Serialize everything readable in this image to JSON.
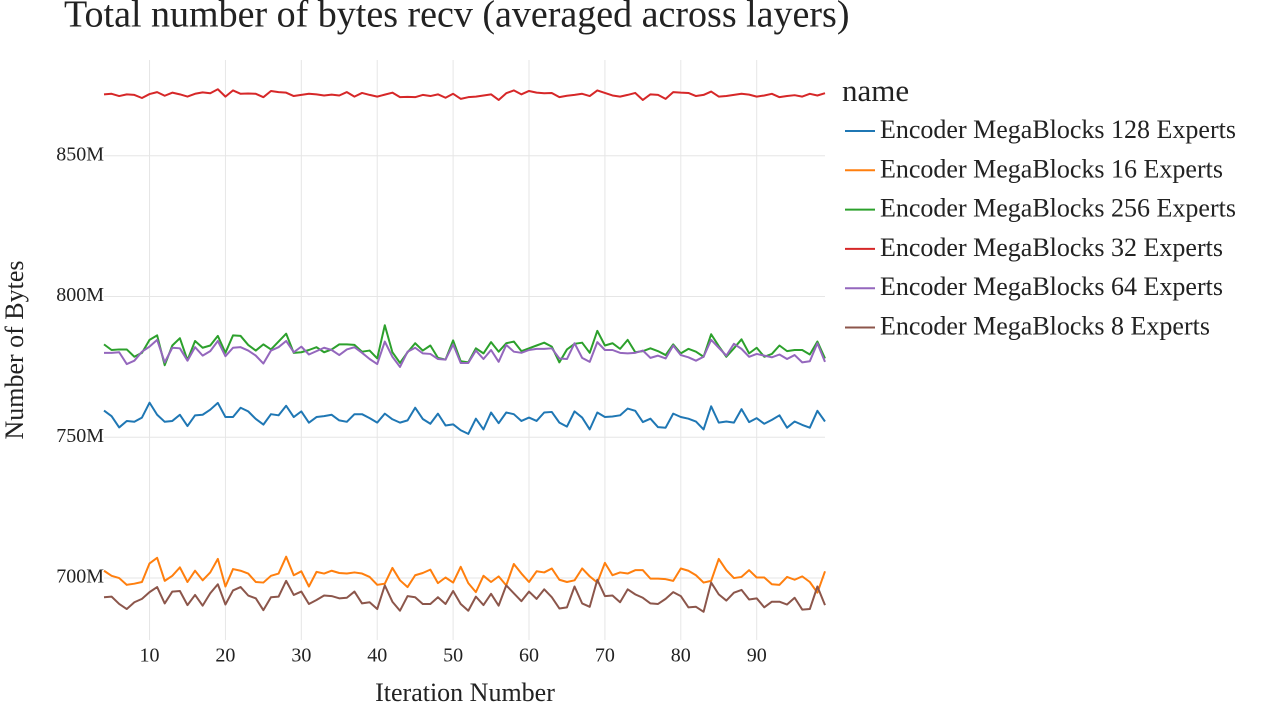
{
  "chart_data": {
    "type": "line",
    "title": "Total number of bytes recv (averaged across layers)",
    "x_label": "Iteration Number",
    "y_label": "Number of Bytes",
    "legend_title": "name",
    "legend_position": "right",
    "grid": true,
    "xlim": [
      4,
      99
    ],
    "ylim": [
      678000000.0,
      884000000.0
    ],
    "xticks": [
      10,
      20,
      30,
      40,
      50,
      60,
      70,
      80,
      90
    ],
    "yticks": [
      {
        "value": 700000000.0,
        "label": "700M"
      },
      {
        "value": 750000000.0,
        "label": "750M"
      },
      {
        "value": 800000000.0,
        "label": "800M"
      },
      {
        "value": 850000000.0,
        "label": "850M"
      }
    ],
    "x": [
      4,
      5,
      6,
      7,
      8,
      9,
      10,
      11,
      12,
      13,
      14,
      15,
      16,
      17,
      18,
      19,
      20,
      21,
      22,
      23,
      24,
      25,
      26,
      27,
      28,
      29,
      30,
      31,
      32,
      33,
      34,
      35,
      36,
      37,
      38,
      39,
      40,
      41,
      42,
      43,
      44,
      45,
      46,
      47,
      48,
      49,
      50,
      51,
      52,
      53,
      54,
      55,
      56,
      57,
      58,
      59,
      60,
      61,
      62,
      63,
      64,
      65,
      66,
      67,
      68,
      69,
      70,
      71,
      72,
      73,
      74,
      75,
      76,
      77,
      78,
      79,
      80,
      81,
      82,
      83,
      84,
      85,
      86,
      87,
      88,
      89,
      90,
      91,
      92,
      93,
      94,
      95,
      96,
      97,
      98,
      99
    ],
    "series": [
      {
        "name": "Encoder MegaBlocks 128 Experts",
        "color": "#1f77b4",
        "values": [
          759500000.0,
          757500000.0,
          753500000.0,
          755800000.0,
          755500000.0,
          757000000.0,
          762300000.0,
          758000000.0,
          755500000.0,
          755800000.0,
          758000000.0,
          754000000.0,
          757800000.0,
          758000000.0,
          759800000.0,
          762200000.0,
          757200000.0,
          757200000.0,
          760500000.0,
          759200000.0,
          756500000.0,
          754500000.0,
          758200000.0,
          757800000.0,
          761200000.0,
          757200000.0,
          759200000.0,
          755200000.0,
          757200000.0,
          757500000.0,
          758000000.0,
          756000000.0,
          755500000.0,
          758200000.0,
          758200000.0,
          756800000.0,
          755200000.0,
          758400000.0,
          756400000.0,
          755200000.0,
          756000000.0,
          760500000.0,
          756500000.0,
          754800000.0,
          758400000.0,
          754200000.0,
          754600000.0,
          752500000.0,
          751200000.0,
          756600000.0,
          752800000.0,
          758800000.0,
          755000000.0,
          758800000.0,
          758200000.0,
          755800000.0,
          757000000.0,
          755800000.0,
          758800000.0,
          759000000.0,
          755200000.0,
          753800000.0,
          759200000.0,
          757000000.0,
          752800000.0,
          758800000.0,
          757200000.0,
          757400000.0,
          757800000.0,
          760200000.0,
          759400000.0,
          755400000.0,
          756600000.0,
          753600000.0,
          753400000.0,
          758400000.0,
          757200000.0,
          756600000.0,
          755600000.0,
          752800000.0,
          761000000.0,
          755200000.0,
          755600000.0,
          755200000.0,
          760000000.0,
          755400000.0,
          756800000.0,
          754800000.0,
          756200000.0,
          757800000.0,
          753400000.0,
          755600000.0,
          754400000.0,
          753400000.0,
          759400000.0,
          755600000.0
        ]
      },
      {
        "name": "Encoder MegaBlocks 16 Experts",
        "color": "#ff7f0e",
        "values": [
          702600000.0,
          700800000.0,
          700000000.0,
          697600000.0,
          698000000.0,
          698600000.0,
          705200000.0,
          707200000.0,
          699000000.0,
          700800000.0,
          703800000.0,
          698600000.0,
          702600000.0,
          699200000.0,
          702000000.0,
          706800000.0,
          697000000.0,
          703200000.0,
          702600000.0,
          701600000.0,
          698600000.0,
          698400000.0,
          700800000.0,
          701600000.0,
          707600000.0,
          701000000.0,
          702400000.0,
          697000000.0,
          702200000.0,
          701600000.0,
          702600000.0,
          701800000.0,
          701600000.0,
          702000000.0,
          701600000.0,
          700400000.0,
          697600000.0,
          698000000.0,
          703600000.0,
          699200000.0,
          696800000.0,
          701000000.0,
          701800000.0,
          703000000.0,
          698200000.0,
          700200000.0,
          698400000.0,
          704000000.0,
          698200000.0,
          695000000.0,
          700800000.0,
          698600000.0,
          700600000.0,
          697400000.0,
          705000000.0,
          701600000.0,
          698600000.0,
          702400000.0,
          702000000.0,
          703400000.0,
          699400000.0,
          698600000.0,
          699200000.0,
          703400000.0,
          700600000.0,
          698400000.0,
          705400000.0,
          701000000.0,
          702000000.0,
          701600000.0,
          702800000.0,
          702800000.0,
          699800000.0,
          699800000.0,
          699600000.0,
          699000000.0,
          703400000.0,
          702600000.0,
          701000000.0,
          698400000.0,
          699000000.0,
          706800000.0,
          702800000.0,
          700000000.0,
          700400000.0,
          702800000.0,
          700200000.0,
          700200000.0,
          697800000.0,
          697600000.0,
          700400000.0,
          699400000.0,
          700600000.0,
          698600000.0,
          694800000.0,
          702400000.0
        ]
      },
      {
        "name": "Encoder MegaBlocks 256 Experts",
        "color": "#2ca02c",
        "values": [
          783000000.0,
          781000000.0,
          781200000.0,
          781200000.0,
          778600000.0,
          780000000.0,
          784600000.0,
          786200000.0,
          775600000.0,
          782600000.0,
          785200000.0,
          777400000.0,
          784200000.0,
          781800000.0,
          782600000.0,
          786000000.0,
          780000000.0,
          786200000.0,
          786000000.0,
          782800000.0,
          780800000.0,
          783000000.0,
          781200000.0,
          784000000.0,
          786800000.0,
          780000000.0,
          780200000.0,
          781000000.0,
          782000000.0,
          780200000.0,
          781200000.0,
          783000000.0,
          783000000.0,
          782800000.0,
          780400000.0,
          780800000.0,
          778000000.0,
          789800000.0,
          780200000.0,
          776400000.0,
          780200000.0,
          783400000.0,
          780800000.0,
          782600000.0,
          778200000.0,
          777600000.0,
          784400000.0,
          777000000.0,
          776600000.0,
          781600000.0,
          779800000.0,
          783800000.0,
          780400000.0,
          783400000.0,
          784000000.0,
          780600000.0,
          781600000.0,
          782600000.0,
          783600000.0,
          782200000.0,
          776600000.0,
          781200000.0,
          783200000.0,
          783600000.0,
          780000000.0,
          787800000.0,
          782600000.0,
          783400000.0,
          781400000.0,
          784600000.0,
          780200000.0,
          780600000.0,
          781600000.0,
          780600000.0,
          779200000.0,
          783000000.0,
          779800000.0,
          781400000.0,
          780400000.0,
          778600000.0,
          786600000.0,
          782400000.0,
          778600000.0,
          781600000.0,
          784800000.0,
          779800000.0,
          781800000.0,
          778600000.0,
          779600000.0,
          782600000.0,
          780600000.0,
          781000000.0,
          781000000.0,
          779400000.0,
          784000000.0,
          778000000.0
        ]
      },
      {
        "name": "Encoder MegaBlocks 32 Experts",
        "color": "#d62728",
        "values": [
          871800000.0,
          872000000.0,
          871200000.0,
          871800000.0,
          871600000.0,
          870500000.0,
          871900000.0,
          872600000.0,
          871300000.0,
          872400000.0,
          871800000.0,
          871000000.0,
          872000000.0,
          872500000.0,
          872200000.0,
          873600000.0,
          871000000.0,
          873200000.0,
          872000000.0,
          872100000.0,
          872000000.0,
          870800000.0,
          873000000.0,
          872600000.0,
          872400000.0,
          871200000.0,
          871600000.0,
          872000000.0,
          871800000.0,
          871400000.0,
          871700000.0,
          871400000.0,
          872600000.0,
          871000000.0,
          872300000.0,
          871600000.0,
          871000000.0,
          871700000.0,
          872400000.0,
          870800000.0,
          870900000.0,
          870800000.0,
          871600000.0,
          871200000.0,
          871800000.0,
          870600000.0,
          872000000.0,
          870200000.0,
          870800000.0,
          871000000.0,
          871400000.0,
          871800000.0,
          869800000.0,
          872200000.0,
          873200000.0,
          871800000.0,
          873000000.0,
          872400000.0,
          872200000.0,
          872300000.0,
          870800000.0,
          871300000.0,
          871600000.0,
          872000000.0,
          871200000.0,
          873200000.0,
          872300000.0,
          871400000.0,
          871000000.0,
          871600000.0,
          872300000.0,
          869800000.0,
          871800000.0,
          871600000.0,
          870200000.0,
          872600000.0,
          872400000.0,
          872300000.0,
          871200000.0,
          871600000.0,
          872800000.0,
          871000000.0,
          871200000.0,
          871600000.0,
          872000000.0,
          871700000.0,
          871000000.0,
          871400000.0,
          872000000.0,
          870800000.0,
          871200000.0,
          871500000.0,
          871000000.0,
          872000000.0,
          871400000.0,
          872200000.0
        ]
      },
      {
        "name": "Encoder MegaBlocks 64 Experts",
        "color": "#9467bd",
        "values": [
          780000000.0,
          780000000.0,
          780200000.0,
          776000000.0,
          777200000.0,
          780400000.0,
          782200000.0,
          784600000.0,
          776600000.0,
          781800000.0,
          781600000.0,
          777200000.0,
          782000000.0,
          779000000.0,
          780600000.0,
          784200000.0,
          778800000.0,
          781800000.0,
          782000000.0,
          780800000.0,
          779000000.0,
          776200000.0,
          780800000.0,
          782000000.0,
          784200000.0,
          780200000.0,
          782200000.0,
          779400000.0,
          780600000.0,
          781800000.0,
          781000000.0,
          779200000.0,
          781200000.0,
          782000000.0,
          780000000.0,
          777800000.0,
          776000000.0,
          784000000.0,
          778600000.0,
          775000000.0,
          780400000.0,
          781800000.0,
          779800000.0,
          779600000.0,
          777800000.0,
          777600000.0,
          783000000.0,
          776400000.0,
          776400000.0,
          780800000.0,
          777800000.0,
          781000000.0,
          776800000.0,
          782800000.0,
          780400000.0,
          780000000.0,
          781000000.0,
          781400000.0,
          781400000.0,
          781600000.0,
          778000000.0,
          777800000.0,
          783400000.0,
          778200000.0,
          776800000.0,
          783800000.0,
          781000000.0,
          781000000.0,
          780000000.0,
          779800000.0,
          780000000.0,
          780800000.0,
          778200000.0,
          779000000.0,
          778000000.0,
          782600000.0,
          779200000.0,
          778400000.0,
          777200000.0,
          778600000.0,
          784600000.0,
          781800000.0,
          779000000.0,
          783200000.0,
          781400000.0,
          778600000.0,
          779600000.0,
          779000000.0,
          778400000.0,
          779400000.0,
          777800000.0,
          779200000.0,
          776600000.0,
          777000000.0,
          783400000.0,
          776800000.0
        ]
      },
      {
        "name": "Encoder MegaBlocks 8 Experts",
        "color": "#8c564b",
        "values": [
          693200000.0,
          693400000.0,
          690800000.0,
          689000000.0,
          691400000.0,
          692600000.0,
          695000000.0,
          696800000.0,
          691000000.0,
          695200000.0,
          695400000.0,
          690400000.0,
          694000000.0,
          690200000.0,
          694600000.0,
          697800000.0,
          690600000.0,
          695600000.0,
          696800000.0,
          693800000.0,
          692800000.0,
          688600000.0,
          693200000.0,
          693400000.0,
          699000000.0,
          694000000.0,
          695200000.0,
          690800000.0,
          692200000.0,
          693800000.0,
          693600000.0,
          692800000.0,
          693000000.0,
          695200000.0,
          691000000.0,
          691400000.0,
          689000000.0,
          697400000.0,
          691600000.0,
          688400000.0,
          693600000.0,
          693200000.0,
          690800000.0,
          690800000.0,
          693200000.0,
          690800000.0,
          695400000.0,
          690800000.0,
          688400000.0,
          693400000.0,
          690400000.0,
          694400000.0,
          690200000.0,
          697400000.0,
          694600000.0,
          691800000.0,
          695200000.0,
          692600000.0,
          696000000.0,
          693200000.0,
          689200000.0,
          689600000.0,
          697000000.0,
          691000000.0,
          689800000.0,
          699400000.0,
          693600000.0,
          693800000.0,
          691400000.0,
          696000000.0,
          694200000.0,
          693000000.0,
          691000000.0,
          690800000.0,
          692600000.0,
          695000000.0,
          693600000.0,
          689600000.0,
          689800000.0,
          688000000.0,
          698400000.0,
          694200000.0,
          692000000.0,
          694800000.0,
          695800000.0,
          692400000.0,
          692800000.0,
          689600000.0,
          691600000.0,
          691600000.0,
          690600000.0,
          693000000.0,
          688800000.0,
          689000000.0,
          697000000.0,
          690400000.0
        ]
      }
    ]
  }
}
